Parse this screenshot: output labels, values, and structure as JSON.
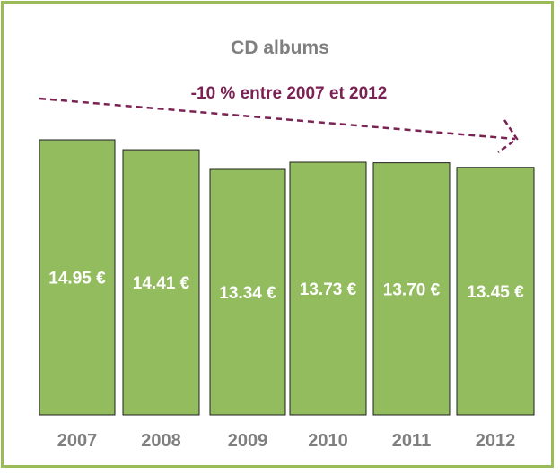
{
  "chart_data": {
    "type": "bar",
    "title": "CD albums",
    "annotation": "-10 % entre 2007 et 2012",
    "categories": [
      "2007",
      "2008",
      "2009",
      "2010",
      "2011",
      "2012"
    ],
    "values": [
      14.95,
      14.41,
      13.34,
      13.73,
      13.7,
      13.45
    ],
    "value_labels": [
      "14.95 €",
      "14.41 €",
      "13.34 €",
      "13.73 €",
      "13.70 €",
      "13.45 €"
    ],
    "unit": "€",
    "colors": {
      "bar": "#93bc5f",
      "bar_border": "#1f1f1f",
      "frame": "#9bbb59",
      "annotation": "#7a2253",
      "text": "#7f7f7f"
    },
    "xlabel": "",
    "ylabel": "",
    "grid": false
  }
}
